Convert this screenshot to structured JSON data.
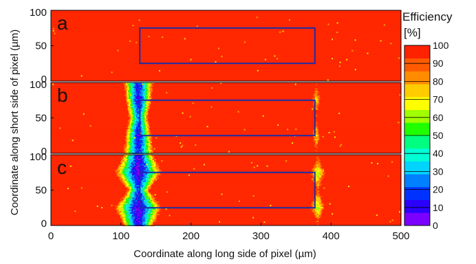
{
  "chart_data": {
    "type": "heatmap",
    "xlabel": "Coordinate along long side of pixel (µm)",
    "ylabel": "Coordinate along short side of pixel (µm)",
    "xlim": [
      0,
      500
    ],
    "ylim": [
      0,
      100
    ],
    "x_ticks": [
      "0",
      "100",
      "200",
      "300",
      "400",
      "500"
    ],
    "y_ticks": [
      "0",
      "50",
      "100"
    ],
    "colorbar": {
      "title_line1": "Efficiency",
      "title_line2": "[%]",
      "range": [
        0,
        100
      ],
      "ticks": [
        "0",
        "10",
        "20",
        "30",
        "40",
        "50",
        "60",
        "70",
        "80",
        "90",
        "100"
      ]
    },
    "background_efficiency": 100,
    "panels": [
      {
        "label": "a",
        "box": {
          "x": [
            127,
            377
          ],
          "y": [
            25,
            75
          ]
        },
        "low_efficiency_columns": []
      },
      {
        "label": "b",
        "box": {
          "x": [
            127,
            377
          ],
          "y": [
            25,
            75
          ]
        },
        "low_efficiency_columns": [
          {
            "x_center": 125,
            "profile": [
              {
                "y": 0,
                "half_width": 14,
                "min_efficiency": 15
              },
              {
                "y": 25,
                "half_width": 12,
                "min_efficiency": 10
              },
              {
                "y": 50,
                "half_width": 9,
                "min_efficiency": 25
              },
              {
                "y": 75,
                "half_width": 12,
                "min_efficiency": 10
              },
              {
                "y": 100,
                "half_width": 14,
                "min_efficiency": 15
              }
            ]
          },
          {
            "x_center": 379,
            "profile": [
              {
                "y": 0,
                "half_width": 0,
                "min_efficiency": 100
              },
              {
                "y": 25,
                "half_width": 4,
                "min_efficiency": 70
              },
              {
                "y": 50,
                "half_width": 0,
                "min_efficiency": 100
              },
              {
                "y": 75,
                "half_width": 4,
                "min_efficiency": 70
              },
              {
                "y": 100,
                "half_width": 0,
                "min_efficiency": 100
              }
            ]
          }
        ]
      },
      {
        "label": "c",
        "box": {
          "x": [
            127,
            377
          ],
          "y": [
            25,
            75
          ]
        },
        "low_efficiency_columns": [
          {
            "x_center": 125,
            "profile": [
              {
                "y": 0,
                "half_width": 14,
                "min_efficiency": 10
              },
              {
                "y": 25,
                "half_width": 22,
                "min_efficiency": 5
              },
              {
                "y": 50,
                "half_width": 10,
                "min_efficiency": 20
              },
              {
                "y": 75,
                "half_width": 22,
                "min_efficiency": 5
              },
              {
                "y": 100,
                "half_width": 14,
                "min_efficiency": 10
              }
            ]
          },
          {
            "x_center": 381,
            "profile": [
              {
                "y": 0,
                "half_width": 0,
                "min_efficiency": 100
              },
              {
                "y": 25,
                "half_width": 7,
                "min_efficiency": 60
              },
              {
                "y": 50,
                "half_width": 2,
                "min_efficiency": 90
              },
              {
                "y": 75,
                "half_width": 7,
                "min_efficiency": 60
              },
              {
                "y": 100,
                "half_width": 0,
                "min_efficiency": 100
              }
            ]
          }
        ]
      }
    ],
    "colors": {
      "box_outline": "#1a2ea8",
      "colormap": [
        "#7a00ff",
        "#2b00ff",
        "#0032ff",
        "#0080ff",
        "#00d4ff",
        "#00ffd4",
        "#00ff80",
        "#20ff00",
        "#a0ff00",
        "#ffff00",
        "#ffcc00",
        "#ff8c00",
        "#ff5a00",
        "#ff2200"
      ]
    }
  }
}
